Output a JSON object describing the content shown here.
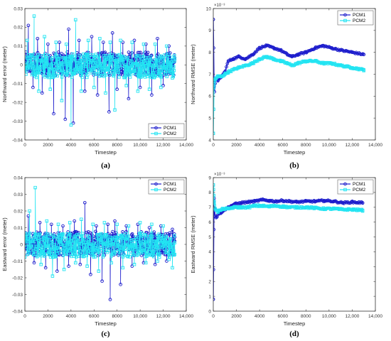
{
  "colors": {
    "pcm1": "#1c1ccc",
    "pcm2": "#22e4f2",
    "axis": "#333333"
  },
  "chart_data": [
    {
      "type": "line",
      "caption": "(a)",
      "xlabel": "Timestep",
      "ylabel": "Northward error (meter)",
      "xlim": [
        0,
        14000
      ],
      "ylim": [
        -0.04,
        0.03
      ],
      "xticks": [
        0,
        2000,
        4000,
        6000,
        8000,
        10000,
        12000,
        14000
      ],
      "xticklabels": [
        "0",
        "2000",
        "4000",
        "6000",
        "8000",
        "10,000",
        "12,000",
        "14,000"
      ],
      "yticks": [
        -0.04,
        -0.03,
        -0.02,
        -0.01,
        0,
        0.01,
        0.02,
        0.03
      ],
      "yticklabels": [
        "-0.04",
        "-0.03",
        "-0.02",
        "-0.01",
        "0",
        "0.01",
        "0.02",
        "0.03"
      ],
      "legend": "bottom-right",
      "series": [
        {
          "name": "PCM1",
          "kind": "noise",
          "x": [
            0,
            300,
            700,
            1100,
            1500,
            2000,
            2500,
            3000,
            3500,
            3800,
            4200,
            4700,
            5200,
            5800,
            6300,
            6800,
            7300,
            7600,
            8000,
            8500,
            9000,
            9500,
            10000,
            10500,
            11000,
            11500,
            12000,
            12500,
            13000
          ],
          "y": [
            0.002,
            0.021,
            -0.012,
            0.014,
            -0.015,
            0.011,
            -0.026,
            0.012,
            -0.029,
            0.019,
            -0.031,
            0.013,
            -0.014,
            0.015,
            -0.016,
            0.012,
            -0.025,
            0.017,
            -0.013,
            0.012,
            -0.018,
            0.013,
            -0.012,
            0.011,
            -0.016,
            0.014,
            -0.011,
            0.01,
            0.003
          ]
        },
        {
          "name": "PCM2",
          "kind": "noise",
          "x": [
            0,
            200,
            800,
            1200,
            1700,
            2200,
            2700,
            3200,
            3600,
            4000,
            4400,
            4900,
            5500,
            6000,
            6500,
            7000,
            7400,
            7800,
            8300,
            8800,
            9300,
            9800,
            10300,
            10800,
            11300,
            11800,
            12300,
            12800,
            13000
          ],
          "y": [
            0.001,
            0.013,
            0.026,
            -0.014,
            0.015,
            -0.013,
            0.012,
            -0.019,
            0.011,
            -0.032,
            0.024,
            -0.014,
            0.013,
            -0.012,
            0.014,
            -0.015,
            0.012,
            -0.024,
            0.013,
            -0.011,
            0.012,
            -0.014,
            0.011,
            -0.013,
            0.011,
            -0.012,
            0.01,
            -0.007,
            0.002
          ]
        }
      ]
    },
    {
      "type": "line",
      "caption": "(b)",
      "xlabel": "Timestep",
      "ylabel": "Northward RMSE (meter)",
      "yexponent": "×10⁻³",
      "xlim": [
        0,
        14000
      ],
      "ylim": [
        4,
        10
      ],
      "xticks": [
        0,
        2000,
        4000,
        6000,
        8000,
        10000,
        12000,
        14000
      ],
      "xticklabels": [
        "0",
        "2000",
        "4000",
        "6000",
        "8000",
        "10,000",
        "12,000",
        "14,000"
      ],
      "yticks": [
        4,
        5,
        6,
        7,
        8,
        9,
        10
      ],
      "yticklabels": [
        "4",
        "5",
        "6",
        "7",
        "8",
        "9",
        "10"
      ],
      "legend": "top-right",
      "series": [
        {
          "name": "PCM1",
          "kind": "smooth",
          "x": [
            0,
            30,
            60,
            100,
            200,
            400,
            700,
            1000,
            1300,
            1700,
            2200,
            2800,
            3400,
            4000,
            4600,
            5200,
            5800,
            6400,
            6800,
            7300,
            8000,
            8800,
            9500,
            10200,
            11000,
            12000,
            13000
          ],
          "y": [
            9.5,
            8.2,
            6.7,
            6.2,
            6.8,
            6.7,
            6.9,
            7.1,
            7.6,
            7.7,
            7.8,
            7.7,
            7.9,
            8.2,
            8.3,
            8.2,
            8.1,
            7.9,
            7.8,
            7.9,
            8.0,
            8.2,
            8.3,
            8.2,
            8.1,
            8.0,
            7.9
          ]
        },
        {
          "name": "PCM2",
          "kind": "smooth",
          "x": [
            0,
            30,
            60,
            100,
            200,
            400,
            700,
            1000,
            1300,
            1700,
            2200,
            2800,
            3400,
            4000,
            4600,
            5200,
            5800,
            6400,
            6800,
            7300,
            8000,
            8800,
            9500,
            10200,
            11000,
            12000,
            13000
          ],
          "y": [
            4.3,
            5.4,
            6.4,
            6.7,
            6.8,
            6.9,
            6.9,
            7.0,
            7.1,
            7.2,
            7.3,
            7.4,
            7.5,
            7.7,
            7.8,
            7.7,
            7.6,
            7.5,
            7.4,
            7.5,
            7.6,
            7.6,
            7.5,
            7.5,
            7.4,
            7.3,
            7.2
          ]
        }
      ]
    },
    {
      "type": "line",
      "caption": "(c)",
      "xlabel": "Timestep",
      "ylabel": "Eastward error (meter)",
      "xlim": [
        0,
        14000
      ],
      "ylim": [
        -0.04,
        0.04
      ],
      "xticks": [
        0,
        2000,
        4000,
        6000,
        8000,
        10000,
        12000,
        14000
      ],
      "xticklabels": [
        "0",
        "2000",
        "4000",
        "6000",
        "8000",
        "10,000",
        "12,000",
        "14,000"
      ],
      "yticks": [
        -0.04,
        -0.03,
        -0.02,
        -0.01,
        0,
        0.01,
        0.02,
        0.03,
        0.04
      ],
      "yticklabels": [
        "-0.04",
        "-0.03",
        "-0.02",
        "-0.01",
        "0",
        "0.01",
        "0.02",
        "0.03",
        "0.04"
      ],
      "legend": "top-right",
      "series": [
        {
          "name": "PCM1",
          "kind": "noise",
          "x": [
            0,
            300,
            800,
            1300,
            1800,
            2300,
            2800,
            3300,
            3800,
            4300,
            4800,
            5200,
            5700,
            6200,
            6700,
            7200,
            7400,
            7800,
            8300,
            8800,
            9300,
            9800,
            10300,
            10800,
            11300,
            11800,
            12300,
            12800,
            13000
          ],
          "y": [
            0.001,
            0.017,
            -0.011,
            0.013,
            -0.014,
            0.012,
            -0.016,
            0.011,
            -0.013,
            0.014,
            -0.012,
            0.025,
            -0.018,
            0.011,
            -0.022,
            0.012,
            -0.033,
            0.014,
            -0.024,
            0.011,
            -0.013,
            0.012,
            -0.011,
            0.01,
            -0.012,
            0.011,
            -0.01,
            0.009,
            0.002
          ]
        },
        {
          "name": "PCM2",
          "kind": "noise",
          "x": [
            0,
            400,
            900,
            1400,
            1900,
            2400,
            2900,
            3400,
            3900,
            4400,
            4900,
            5400,
            5900,
            6400,
            6900,
            7500,
            8000,
            8500,
            9000,
            9500,
            10000,
            10500,
            11000,
            11500,
            12000,
            12500,
            12800,
            13000
          ],
          "y": [
            0.002,
            0.02,
            0.034,
            -0.012,
            0.014,
            -0.019,
            0.012,
            -0.015,
            0.013,
            -0.011,
            0.015,
            -0.013,
            0.012,
            -0.016,
            0.013,
            -0.011,
            0.012,
            -0.014,
            0.011,
            -0.012,
            0.013,
            -0.011,
            0.012,
            -0.01,
            0.011,
            -0.009,
            -0.014,
            0.001
          ]
        }
      ]
    },
    {
      "type": "line",
      "caption": "(d)",
      "xlabel": "Timestep",
      "ylabel": "Eastward RMSE (meter)",
      "yexponent": "×10⁻³",
      "xlim": [
        0,
        14000
      ],
      "ylim": [
        0,
        9
      ],
      "xticks": [
        0,
        2000,
        4000,
        6000,
        8000,
        10000,
        12000,
        14000
      ],
      "xticklabels": [
        "0",
        "2000",
        "4000",
        "6000",
        "8000",
        "10,000",
        "12,000",
        "14,000"
      ],
      "yticks": [
        0,
        1,
        2,
        3,
        4,
        5,
        6,
        7,
        8,
        9
      ],
      "yticklabels": [
        "0",
        "1",
        "2",
        "3",
        "4",
        "5",
        "6",
        "7",
        "8",
        "9"
      ],
      "legend": "top-right",
      "series": [
        {
          "name": "PCM1",
          "kind": "smooth",
          "x": [
            0,
            20,
            40,
            70,
            110,
            160,
            250,
            400,
            600,
            900,
            1300,
            1800,
            2400,
            3000,
            3600,
            4200,
            4800,
            5400,
            6000,
            6600,
            7200,
            8000,
            8800,
            9600,
            10400,
            11200,
            12000,
            12900
          ],
          "y": [
            0.8,
            2.8,
            5.5,
            7.6,
            6.9,
            6.4,
            6.3,
            6.5,
            6.6,
            6.8,
            7.0,
            7.2,
            7.3,
            7.35,
            7.4,
            7.5,
            7.45,
            7.4,
            7.45,
            7.4,
            7.35,
            7.4,
            7.4,
            7.45,
            7.4,
            7.3,
            7.35,
            7.3
          ]
        },
        {
          "name": "PCM2",
          "kind": "smooth",
          "x": [
            0,
            20,
            40,
            70,
            110,
            160,
            250,
            400,
            600,
            900,
            1300,
            1800,
            2400,
            3000,
            3600,
            4200,
            4800,
            5400,
            6000,
            6600,
            7200,
            8000,
            8800,
            9600,
            10400,
            11200,
            12000,
            12900
          ],
          "y": [
            8.5,
            8.2,
            7.8,
            7.4,
            7.1,
            6.9,
            6.8,
            6.7,
            6.8,
            6.9,
            6.9,
            7.0,
            7.0,
            7.0,
            7.1,
            7.1,
            7.05,
            7.1,
            7.05,
            7.0,
            7.0,
            7.0,
            6.95,
            6.9,
            6.9,
            6.85,
            6.85,
            6.8
          ]
        }
      ]
    }
  ]
}
